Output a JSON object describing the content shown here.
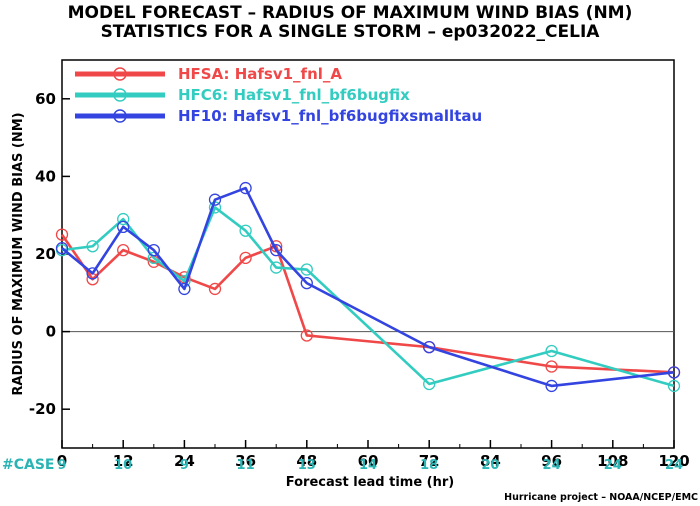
{
  "title_line1": "MODEL FORECAST – RADIUS OF MAXIMUM WIND BIAS (NM)",
  "title_line2": "STATISTICS FOR A SINGLE STORM – ep032022_CELIA",
  "case_label": "#CASE",
  "credit": "Hurricane project – NOAA/NCEP/EMC",
  "chart_data": {
    "type": "line",
    "title": "MODEL FORECAST – RADIUS OF MAXIMUM WIND BIAS (NM)",
    "subtitle": "STATISTICS FOR A SINGLE STORM – ep032022_CELIA",
    "xlabel": "Forecast lead time (hr)",
    "ylabel": "RADIUS OF MAXIMUM WIND BIAS (NM)",
    "xlim": [
      0,
      120
    ],
    "ylim": [
      -30,
      70
    ],
    "xticks": [
      0,
      12,
      24,
      36,
      48,
      60,
      72,
      84,
      96,
      108,
      120
    ],
    "yticks": [
      -20,
      0,
      20,
      40,
      60
    ],
    "zero_line": true,
    "legend_position": "top-left",
    "cases": [
      {
        "x": 0,
        "n": "9"
      },
      {
        "x": 12,
        "n": "10"
      },
      {
        "x": 24,
        "n": "9"
      },
      {
        "x": 36,
        "n": "11"
      },
      {
        "x": 48,
        "n": "13"
      },
      {
        "x": 60,
        "n": "14"
      },
      {
        "x": 72,
        "n": "18"
      },
      {
        "x": 84,
        "n": "20"
      },
      {
        "x": 96,
        "n": "24"
      },
      {
        "x": 108,
        "n": "24"
      },
      {
        "x": 120,
        "n": "24"
      }
    ],
    "series": [
      {
        "name": "HFSA: Hafsv1_fnl_A",
        "color": "#f04848",
        "x": [
          0,
          6,
          12,
          18,
          24,
          30,
          36,
          42,
          48,
          72,
          96,
          120
        ],
        "y": [
          25,
          13.5,
          21,
          18,
          14,
          11,
          19,
          22,
          -1,
          -4,
          -9,
          -10.5
        ]
      },
      {
        "name": "HFC6: Hafsv1_fnl_bf6bugfix",
        "color": "#33ccc0",
        "x": [
          0,
          6,
          12,
          18,
          24,
          30,
          36,
          42,
          48,
          72,
          96,
          120
        ],
        "y": [
          21,
          22,
          29,
          19,
          13,
          32,
          26,
          16.5,
          16,
          -13.5,
          -5,
          -14
        ]
      },
      {
        "name": "HF10: Hafsv1_fnl_bf6bugfixsmalltau",
        "color": "#3344e0",
        "x": [
          0,
          6,
          12,
          18,
          24,
          30,
          36,
          42,
          48,
          72,
          96,
          120
        ],
        "y": [
          21.5,
          15,
          27,
          21,
          11,
          34,
          37,
          21,
          12.5,
          -4,
          -14,
          -10.5
        ]
      }
    ]
  }
}
